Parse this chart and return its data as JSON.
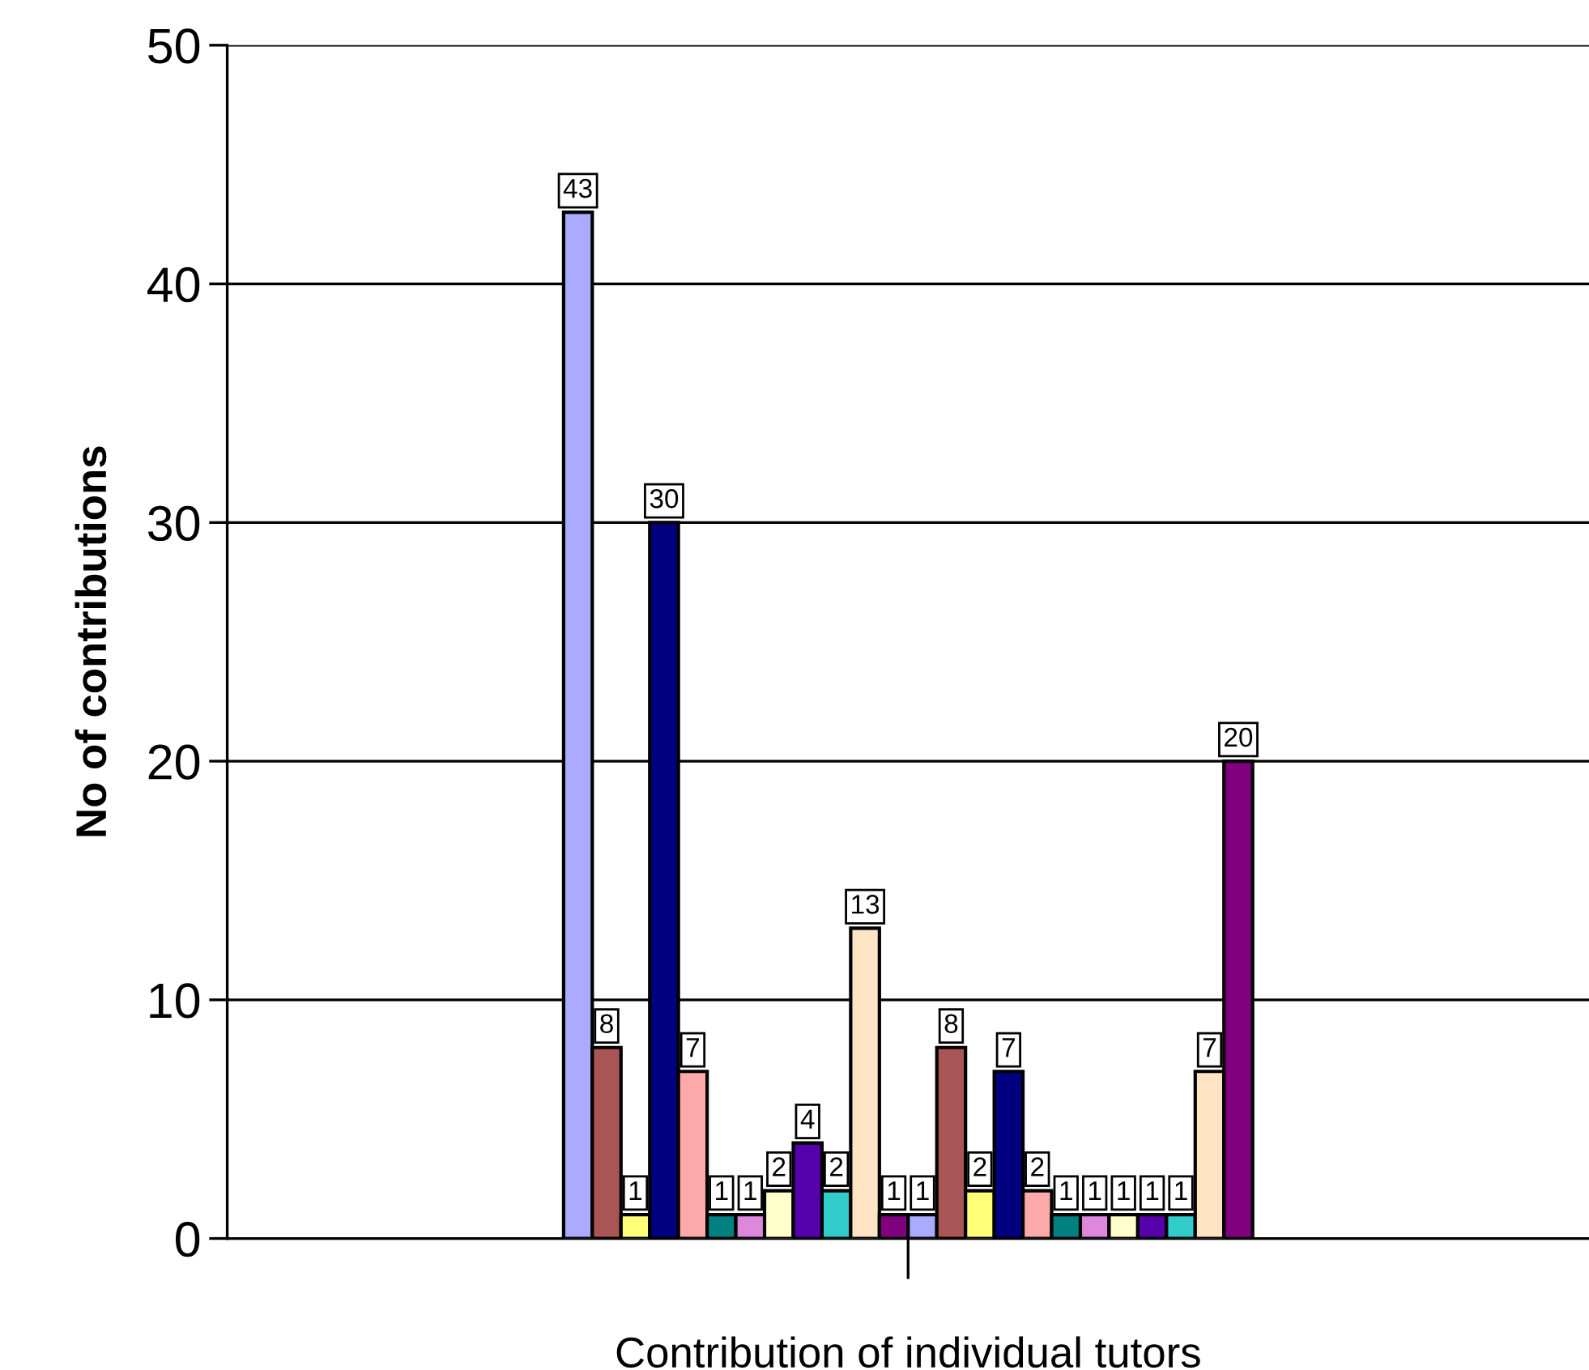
{
  "chart_data": {
    "type": "bar",
    "xlabel": "Contribution of individual tutors",
    "ylabel": "No of contributions",
    "categories": [
      null
    ],
    "ylim": [
      0,
      50
    ],
    "yticks": [
      0,
      10,
      20,
      30,
      40,
      50
    ],
    "grid": "y",
    "data_labels": true,
    "legend": false,
    "series": [
      {
        "color": "#aaaaff",
        "values": [
          43
        ]
      },
      {
        "color": "#aa5555",
        "values": [
          8
        ]
      },
      {
        "color": "#ffff77",
        "values": [
          1
        ]
      },
      {
        "color": "#000080",
        "values": [
          30
        ]
      },
      {
        "color": "#ffaaaa",
        "values": [
          7
        ]
      },
      {
        "color": "#008080",
        "values": [
          1
        ]
      },
      {
        "color": "#dd88dd",
        "values": [
          1
        ]
      },
      {
        "color": "#ffffcc",
        "values": [
          2
        ]
      },
      {
        "color": "#5500aa",
        "values": [
          4
        ]
      },
      {
        "color": "#33cccc",
        "values": [
          2
        ]
      },
      {
        "color": "#ffe4c4",
        "values": [
          13
        ]
      },
      {
        "color": "#800080",
        "values": [
          1
        ]
      },
      {
        "color": "#aaaaff",
        "values": [
          1
        ]
      },
      {
        "color": "#aa5555",
        "values": [
          8
        ]
      },
      {
        "color": "#ffff77",
        "values": [
          2
        ]
      },
      {
        "color": "#000080",
        "values": [
          7
        ]
      },
      {
        "color": "#ffaaaa",
        "values": [
          2
        ]
      },
      {
        "color": "#008080",
        "values": [
          1
        ]
      },
      {
        "color": "#dd88dd",
        "values": [
          1
        ]
      },
      {
        "color": "#ffffcc",
        "values": [
          1
        ]
      },
      {
        "color": "#5500aa",
        "values": [
          1
        ]
      },
      {
        "color": "#33cccc",
        "values": [
          1
        ]
      },
      {
        "color": "#ffe4c4",
        "values": [
          7
        ]
      },
      {
        "color": "#800080",
        "values": [
          20
        ]
      }
    ]
  }
}
